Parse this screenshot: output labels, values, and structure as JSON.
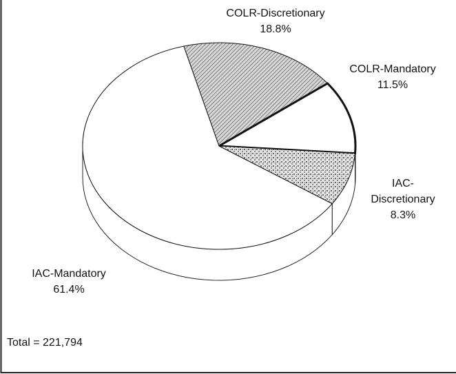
{
  "chart_data": {
    "type": "pie",
    "categories": [
      "COLR-Discretionary",
      "COLR-Mandatory",
      "IAC-Discretionary",
      "IAC-Mandatory"
    ],
    "values": [
      18.8,
      11.5,
      8.3,
      61.4
    ],
    "value_labels": [
      "18.8%",
      "11.5%",
      "8.3%",
      "61.4%"
    ],
    "fills": [
      "hatch",
      "white",
      "stipple",
      "white"
    ],
    "annotation": "Total = 221,794"
  }
}
